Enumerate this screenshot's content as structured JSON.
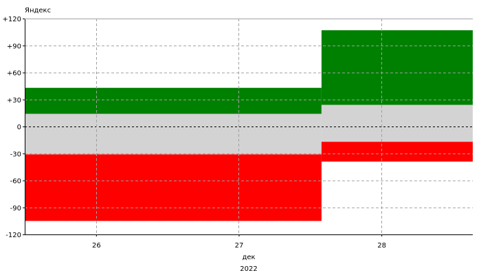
{
  "chart_data": {
    "type": "bar",
    "title": "Яндекс",
    "xlabel": "дек",
    "xlabel2": "2022",
    "ylim": [
      -120,
      120
    ],
    "xlim": [
      25.5,
      28.64
    ],
    "yticks": [
      {
        "value": 120,
        "label": "+120"
      },
      {
        "value": 90,
        "label": "+90"
      },
      {
        "value": 60,
        "label": "+60"
      },
      {
        "value": 30,
        "label": "+30"
      },
      {
        "value": 0,
        "label": "0"
      },
      {
        "value": -30,
        "label": "-30"
      },
      {
        "value": -60,
        "label": "-60"
      },
      {
        "value": -90,
        "label": "-90"
      },
      {
        "value": -120,
        "label": "-120"
      }
    ],
    "xticks": [
      {
        "value": 26,
        "label": "26"
      },
      {
        "value": 27,
        "label": "27"
      },
      {
        "value": 28,
        "label": "28"
      }
    ],
    "grid": true,
    "zero_line": "dashed",
    "colors": {
      "positive": "#008000",
      "neutral": "#d3d3d3",
      "negative": "#ff0000",
      "grid": "#a0a0a0"
    },
    "series": [
      {
        "category": "positive",
        "segments": [
          {
            "x0": 25.5,
            "x1": 27.58,
            "y0": 14,
            "y1": 43
          },
          {
            "x0": 27.58,
            "x1": 28.64,
            "y0": 24,
            "y1": 107
          }
        ]
      },
      {
        "category": "neutral",
        "segments": [
          {
            "x0": 25.5,
            "x1": 27.58,
            "y0": -31,
            "y1": 14
          },
          {
            "x0": 27.58,
            "x1": 28.64,
            "y0": -17,
            "y1": 24
          }
        ]
      },
      {
        "category": "negative",
        "segments": [
          {
            "x0": 25.5,
            "x1": 27.58,
            "y0": -105,
            "y1": -31
          },
          {
            "x0": 27.58,
            "x1": 28.64,
            "y0": -39,
            "y1": -17
          }
        ]
      }
    ]
  }
}
